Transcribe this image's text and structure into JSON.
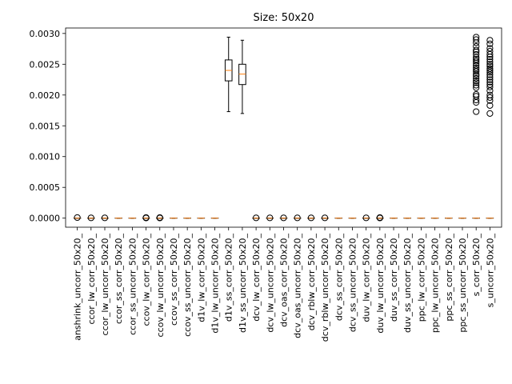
{
  "chart_data": {
    "type": "box",
    "title": "Size: 50x20",
    "xlabel": "",
    "ylabel": "",
    "ylim": [
      -0.000147,
      0.0030887
    ],
    "yticks": [
      "0.0000",
      "0.0005",
      "0.0010",
      "0.0015",
      "0.0020",
      "0.0025",
      "0.0030"
    ],
    "ytick_values": [
      0,
      0.0005,
      0.001,
      0.0015,
      0.002,
      0.0025,
      0.003
    ],
    "colors": {
      "box": "#000000",
      "median": "#ff7f0e",
      "flier": "#000000"
    },
    "categories": [
      "anshrink_uncorr_50x20_",
      "ccor_lw_corr_50x20_",
      "ccor_lw_uncorr_50x20_",
      "ccor_ss_corr_50x20_",
      "ccor_ss_uncorr_50x20_",
      "ccov_lw_corr_50x20_",
      "ccov_lw_uncorr_50x20_",
      "ccov_ss_corr_50x20_",
      "ccov_ss_uncorr_50x20_",
      "d1v_lw_corr_50x20_",
      "d1v_lw_uncorr_50x20_",
      "d1v_ss_corr_50x20_",
      "d1v_ss_uncorr_50x20_",
      "dcv_lw_corr_50x20_",
      "dcv_lw_uncorr_50x20_",
      "dcv_oas_corr_50x20_",
      "dcv_oas_uncorr_50x20_",
      "dcv_rblw_corr_50x20_",
      "dcv_rblw_uncorr_50x20_",
      "dcv_ss_corr_50x20_",
      "dcv_ss_uncorr_50x20_",
      "duv_lw_corr_50x20_",
      "duv_lw_uncorr_50x20_",
      "duv_ss_corr_50x20_",
      "duv_ss_uncorr_50x20_",
      "ppc_lw_corr_50x20_",
      "ppc_lw_uncorr_50x20_",
      "ppc_ss_corr_50x20_",
      "ppc_ss_uncorr_50x20_",
      "s_corr_50x20_",
      "s_uncorr_50x20_"
    ],
    "boxes": [
      {
        "whislo": 0,
        "q1": 0,
        "med": 0,
        "q3": 0,
        "whishi": 0,
        "fliers": [
          1e-05
        ]
      },
      {
        "whislo": 0,
        "q1": 0,
        "med": 0,
        "q3": 0,
        "whishi": 0,
        "fliers": [
          5e-06
        ]
      },
      {
        "whislo": 0,
        "q1": 0,
        "med": 0,
        "q3": 0,
        "whishi": 0,
        "fliers": [
          5e-06
        ]
      },
      {
        "whislo": 0,
        "q1": 0,
        "med": 0,
        "q3": 0,
        "whishi": 0,
        "fliers": []
      },
      {
        "whislo": 0,
        "q1": 0,
        "med": 0,
        "q3": 0,
        "whishi": 0,
        "fliers": []
      },
      {
        "whislo": 0,
        "q1": 0,
        "med": 0,
        "q3": 0,
        "whishi": 0,
        "fliers": [
          1e-05,
          3e-06
        ]
      },
      {
        "whislo": 0,
        "q1": 0,
        "med": 0,
        "q3": 0,
        "whishi": 0,
        "fliers": [
          1e-05,
          3e-06
        ]
      },
      {
        "whislo": 0,
        "q1": 0,
        "med": 0,
        "q3": 0,
        "whishi": 0,
        "fliers": []
      },
      {
        "whislo": 0,
        "q1": 0,
        "med": 0,
        "q3": 0,
        "whishi": 0,
        "fliers": []
      },
      {
        "whislo": 0,
        "q1": 0,
        "med": 0,
        "q3": 0,
        "whishi": 0,
        "fliers": []
      },
      {
        "whislo": 0,
        "q1": 0,
        "med": 0,
        "q3": 0,
        "whishi": 0,
        "fliers": []
      },
      {
        "whislo": 0.00173,
        "q1": 0.00223,
        "med": 0.0024,
        "q3": 0.00257,
        "whishi": 0.00294,
        "fliers": []
      },
      {
        "whislo": 0.0017,
        "q1": 0.00217,
        "med": 0.00234,
        "q3": 0.0025,
        "whishi": 0.00289,
        "fliers": []
      },
      {
        "whislo": 0,
        "q1": 0,
        "med": 0,
        "q3": 0,
        "whishi": 0,
        "fliers": [
          5e-06
        ]
      },
      {
        "whislo": 0,
        "q1": 0,
        "med": 0,
        "q3": 0,
        "whishi": 0,
        "fliers": [
          5e-06
        ]
      },
      {
        "whislo": 0,
        "q1": 0,
        "med": 0,
        "q3": 0,
        "whishi": 0,
        "fliers": [
          5e-06
        ]
      },
      {
        "whislo": 0,
        "q1": 0,
        "med": 0,
        "q3": 0,
        "whishi": 0,
        "fliers": [
          5e-06
        ]
      },
      {
        "whislo": 0,
        "q1": 0,
        "med": 0,
        "q3": 0,
        "whishi": 0,
        "fliers": [
          5e-06
        ]
      },
      {
        "whislo": 0,
        "q1": 0,
        "med": 0,
        "q3": 0,
        "whishi": 0,
        "fliers": [
          5e-06
        ]
      },
      {
        "whislo": 0,
        "q1": 0,
        "med": 0,
        "q3": 0,
        "whishi": 0,
        "fliers": []
      },
      {
        "whislo": 0,
        "q1": 0,
        "med": 0,
        "q3": 0,
        "whishi": 0,
        "fliers": []
      },
      {
        "whislo": 0,
        "q1": 0,
        "med": 0,
        "q3": 0,
        "whishi": 0,
        "fliers": [
          5e-06
        ]
      },
      {
        "whislo": 0,
        "q1": 0,
        "med": 0,
        "q3": 0,
        "whishi": 0,
        "fliers": [
          1e-05,
          3e-06
        ]
      },
      {
        "whislo": 0,
        "q1": 0,
        "med": 0,
        "q3": 0,
        "whishi": 0,
        "fliers": []
      },
      {
        "whislo": 0,
        "q1": 0,
        "med": 0,
        "q3": 0,
        "whishi": 0,
        "fliers": []
      },
      {
        "whislo": 0,
        "q1": 0,
        "med": 0,
        "q3": 0,
        "whishi": 0,
        "fliers": []
      },
      {
        "whislo": 0,
        "q1": 0,
        "med": 0,
        "q3": 0,
        "whishi": 0,
        "fliers": []
      },
      {
        "whislo": 0,
        "q1": 0,
        "med": 0,
        "q3": 0,
        "whishi": 0,
        "fliers": []
      },
      {
        "whislo": 0,
        "q1": 0,
        "med": 0,
        "q3": 0,
        "whishi": 0,
        "fliers": []
      },
      {
        "whislo": 0,
        "q1": 0,
        "med": 0,
        "q3": 0,
        "whishi": 0,
        "fliers": [
          0.00173,
          0.00188,
          0.00192,
          0.00198,
          0.00201,
          0.00212,
          0.00216,
          0.0022,
          0.00223,
          0.00227,
          0.00231,
          0.00234,
          0.00238,
          0.00241,
          0.00244,
          0.00248,
          0.00252,
          0.00255,
          0.00258,
          0.00261,
          0.00266,
          0.0027,
          0.00273,
          0.00279,
          0.00285,
          0.0029,
          0.00294
        ]
      },
      {
        "whislo": 0,
        "q1": 0,
        "med": 0,
        "q3": 0,
        "whishi": 0,
        "fliers": [
          0.0017,
          0.00183,
          0.00191,
          0.00196,
          0.002,
          0.00207,
          0.00213,
          0.00217,
          0.00221,
          0.00225,
          0.00229,
          0.00233,
          0.00237,
          0.0024,
          0.00243,
          0.00247,
          0.0025,
          0.00254,
          0.00258,
          0.00262,
          0.00266,
          0.00271,
          0.00276,
          0.00283,
          0.00289
        ]
      }
    ],
    "grid": false,
    "legend": "none"
  }
}
